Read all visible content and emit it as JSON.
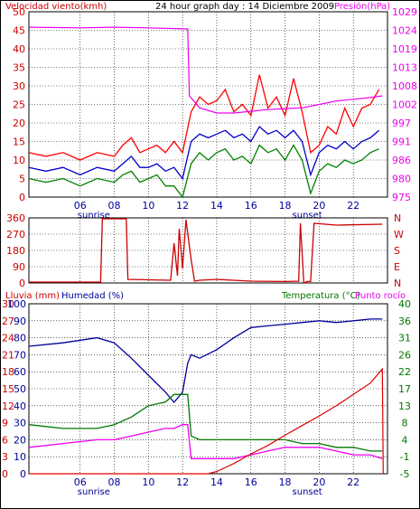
{
  "chart_data": [
    {
      "type": "line",
      "panel": "wind-pressure",
      "title": "24 hour graph day : 14 Diciembre 2009",
      "left_label": "Velocidad viento(kmh)",
      "right_label": "Presión(hPa)",
      "ylim_left": [
        0,
        50
      ],
      "ylim_right": [
        975,
        1029
      ],
      "y_ticks_left": [
        "0",
        "5",
        "10",
        "15",
        "20",
        "25",
        "30",
        "35",
        "40",
        "45",
        "50"
      ],
      "y_ticks_right": [
        "975",
        "980",
        "986",
        "991",
        "997",
        "1002",
        "1008",
        "1013",
        "1019",
        "1024",
        "1029"
      ],
      "x_ticks": [
        "06",
        "08",
        "10",
        "12",
        "14",
        "16",
        "18",
        "20",
        "22"
      ],
      "annotations": [
        "sunrise",
        "sunset"
      ],
      "colors": {
        "gust": "#ff0000",
        "average": "#0000cc",
        "low": "#008000",
        "pressure": "#ee00ee"
      },
      "series": [
        {
          "role": "gust",
          "hours": [
            3,
            4,
            5,
            6,
            7,
            8,
            8.5,
            9,
            9.5,
            10,
            10.5,
            11,
            11.5,
            12,
            12.5,
            13,
            13.5,
            14,
            14.5,
            15,
            15.5,
            16,
            16.5,
            17,
            17.5,
            18,
            18.5,
            19,
            19.5,
            20,
            20.5,
            21,
            21.5,
            22,
            22.5,
            23,
            23.5
          ],
          "values": [
            12,
            11,
            12,
            10,
            12,
            11,
            14,
            16,
            12,
            13,
            14,
            12,
            15,
            12,
            23,
            27,
            25,
            26,
            29,
            23,
            25,
            22,
            33,
            24,
            27,
            22,
            32,
            23,
            12,
            14,
            19,
            17,
            24,
            19,
            24,
            25,
            29
          ]
        },
        {
          "role": "average",
          "hours": [
            3,
            4,
            5,
            6,
            7,
            8,
            8.5,
            9,
            9.5,
            10,
            10.5,
            11,
            11.5,
            12,
            12.5,
            13,
            13.5,
            14,
            14.5,
            15,
            15.5,
            16,
            16.5,
            17,
            17.5,
            18,
            18.5,
            19,
            19.5,
            20,
            20.5,
            21,
            21.5,
            22,
            22.5,
            23,
            23.5
          ],
          "values": [
            8,
            7,
            8,
            6,
            8,
            7,
            9,
            11,
            8,
            8,
            9,
            7,
            8,
            5,
            15,
            17,
            16,
            17,
            18,
            16,
            17,
            15,
            19,
            17,
            18,
            16,
            18,
            15,
            6,
            12,
            14,
            13,
            15,
            13,
            15,
            16,
            18
          ]
        },
        {
          "role": "low",
          "hours": [
            3,
            4,
            5,
            6,
            7,
            8,
            8.5,
            9,
            9.5,
            10,
            10.5,
            11,
            11.5,
            12,
            12.5,
            13,
            13.5,
            14,
            14.5,
            15,
            15.5,
            16,
            16.5,
            17,
            17.5,
            18,
            18.5,
            19,
            19.5,
            20,
            20.5,
            21,
            21.5,
            22,
            22.5,
            23,
            23.5
          ],
          "values": [
            5,
            4,
            5,
            3,
            5,
            4,
            6,
            7,
            4,
            5,
            6,
            3,
            3,
            0,
            9,
            12,
            10,
            12,
            13,
            10,
            11,
            9,
            14,
            12,
            13,
            10,
            14,
            10,
            1,
            7,
            9,
            8,
            10,
            9,
            10,
            12,
            13
          ]
        },
        {
          "role": "pressure",
          "hours": [
            3,
            6,
            8,
            10,
            12.3,
            12.4,
            13,
            14,
            15,
            16,
            17,
            18,
            19,
            20,
            21,
            22,
            23,
            23.7
          ],
          "values": [
            1024.5,
            1024.3,
            1024.5,
            1024.3,
            1024.0,
            1004.5,
            1001.0,
            999.5,
            999.5,
            1000.0,
            1000.5,
            1000.8,
            1001.0,
            1002.0,
            1003.0,
            1003.5,
            1004.0,
            1004.5
          ]
        }
      ]
    },
    {
      "type": "line",
      "panel": "wind-direction",
      "y_ticks_left": [
        "0",
        "90",
        "180",
        "270",
        "360"
      ],
      "y_ticks_right": [
        "N",
        "E",
        "S",
        "W",
        "N"
      ],
      "ylim": [
        0,
        360
      ],
      "color": "#cc0000",
      "series": [
        {
          "name": "direction",
          "hours": [
            3,
            7.2,
            7.3,
            8.7,
            8.8,
            11.3,
            11.5,
            11.7,
            11.8,
            12.0,
            12.2,
            12.5,
            12.7,
            13,
            14,
            16,
            18,
            18.8,
            18.9,
            19.1,
            19.3,
            19.5,
            19.7,
            21,
            23.7
          ],
          "values": [
            5,
            5,
            355,
            355,
            20,
            15,
            220,
            40,
            300,
            80,
            350,
            130,
            10,
            15,
            20,
            10,
            8,
            10,
            330,
            0,
            8,
            8,
            330,
            320,
            325
          ]
        }
      ]
    },
    {
      "type": "line",
      "panel": "rain-humidity-temperature",
      "left_label_a": "Lluvia (mm)",
      "left_label_b": "Humedad (%)",
      "right_label_a": "Temperatura (°C)",
      "right_label_b": "Punto rocío",
      "ylim_rain": [
        0,
        30
      ],
      "ylim_humidity": [
        0,
        100
      ],
      "ylim_temperature": [
        -5,
        40
      ],
      "y_ticks_rain": [
        "0",
        "3",
        "6",
        "9",
        "12",
        "15",
        "18",
        "21",
        "24",
        "27",
        "30"
      ],
      "y_ticks_humidity": [
        "0",
        "10",
        "20",
        "30",
        "40",
        "50",
        "60",
        "70",
        "80",
        "90",
        "100"
      ],
      "y_ticks_right": [
        "-5",
        "-1",
        "4",
        "8",
        "13",
        "17",
        "22",
        "26",
        "31",
        "36",
        "40"
      ],
      "x_ticks": [
        "06",
        "08",
        "10",
        "12",
        "14",
        "16",
        "18",
        "20",
        "22"
      ],
      "annotations": [
        "sunrise",
        "sunset"
      ],
      "colors": {
        "rain": "#dd0000",
        "humidity": "#000099",
        "temperature": "#007700",
        "dew_point": "#ee00ee"
      },
      "series": [
        {
          "role": "humidity",
          "hours": [
            3,
            5,
            7,
            8,
            9,
            10,
            11,
            11.5,
            12,
            12.3,
            12.5,
            13,
            14,
            15,
            16,
            17,
            18,
            19,
            20,
            21,
            22,
            23,
            23.7
          ],
          "values": [
            75,
            77,
            80,
            77,
            68,
            58,
            48,
            42,
            48,
            65,
            70,
            68,
            73,
            80,
            86,
            87,
            88,
            89,
            90,
            89,
            90,
            91,
            91
          ]
        },
        {
          "role": "temperature",
          "hours": [
            3,
            5,
            7,
            8,
            9,
            10,
            11,
            11.5,
            12,
            12.3,
            12.5,
            13,
            14,
            15,
            16,
            17,
            18,
            19,
            20,
            21,
            22,
            23,
            23.7
          ],
          "values": [
            8,
            7,
            7,
            8,
            10,
            13,
            14,
            16,
            16,
            16,
            5,
            4,
            4,
            4,
            4,
            4,
            4,
            3,
            3,
            2,
            2,
            1,
            1
          ]
        },
        {
          "role": "dew_point",
          "hours": [
            3,
            5,
            7,
            8,
            9,
            10,
            11,
            11.5,
            12,
            12.3,
            12.5,
            13,
            14,
            15,
            16,
            17,
            18,
            19,
            20,
            21,
            22,
            23,
            23.7
          ],
          "values": [
            2,
            3,
            4,
            4,
            5,
            6,
            7,
            7,
            8,
            8,
            -1,
            -1,
            -1,
            -1,
            0,
            1,
            2,
            2,
            2,
            1,
            0,
            0,
            -1
          ]
        },
        {
          "role": "rain",
          "hours": [
            3,
            13.5,
            14,
            15,
            16,
            17,
            18,
            19,
            20,
            21,
            22,
            23,
            23.7,
            23.75
          ],
          "values": [
            0,
            0,
            0.4,
            1.8,
            3.5,
            5,
            6.8,
            8.5,
            10.2,
            12,
            14,
            16,
            18.5,
            0
          ]
        }
      ]
    }
  ]
}
